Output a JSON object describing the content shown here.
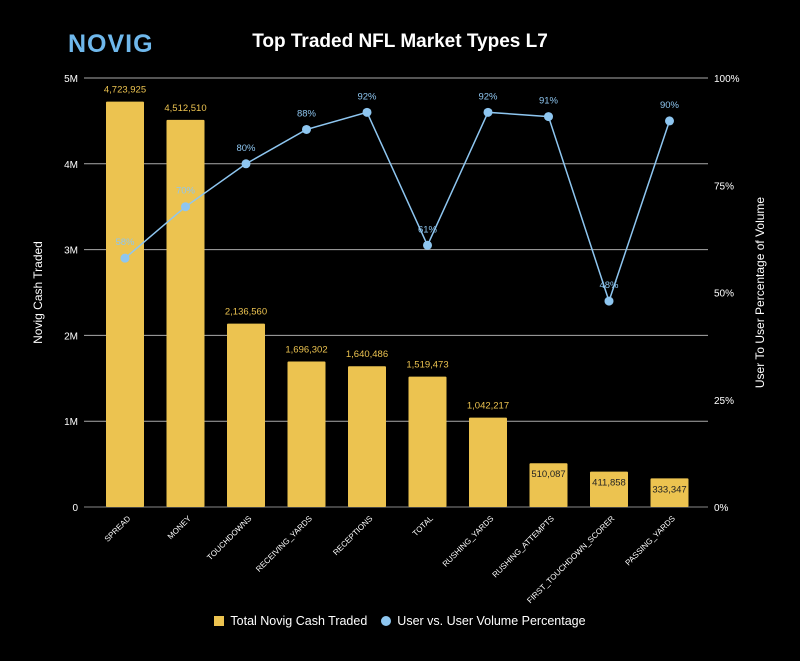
{
  "logo": "NOVIG",
  "chart_data": {
    "type": "bar+line",
    "title": "Top Traded NFL Market Types L7",
    "categories": [
      "SPREAD",
      "MONEY",
      "TOUCHDOWNS",
      "RECEIVING_YARDS",
      "RECEPTIONS",
      "TOTAL",
      "RUSHING_YARDS",
      "RUSHING_ATTEMPTS",
      "FIRST_TOUCHDOWN_SCORER",
      "PASSING_YARDS"
    ],
    "series": [
      {
        "name": "Total Novig Cash Traded",
        "type": "bar",
        "axis": "left",
        "color": "#ecc350",
        "values": [
          4723925,
          4512510,
          2136560,
          1696302,
          1640486,
          1519473,
          1042217,
          510087,
          411858,
          333347
        ],
        "labels": [
          "4,723,925",
          "4,512,510",
          "2,136,560",
          "1,696,302",
          "1,640,486",
          "1,519,473",
          "1,042,217",
          "510,087",
          "411,858",
          "333,347"
        ]
      },
      {
        "name": "User vs. User Volume Percentage",
        "type": "line",
        "axis": "right",
        "color": "#8ec6f0",
        "values": [
          58,
          70,
          80,
          88,
          92,
          61,
          92,
          91,
          48,
          90
        ],
        "labels": [
          "58%",
          "70%",
          "80%",
          "88%",
          "92%",
          "61%",
          "92%",
          "91%",
          "48%",
          "90%"
        ]
      }
    ],
    "ylabel": "Novig Cash Traded",
    "y2label": "User To User Percentage of Volume",
    "ylim": [
      0,
      5000000
    ],
    "y2lim": [
      0,
      100
    ],
    "yticks": [
      "0",
      "1M",
      "2M",
      "3M",
      "4M",
      "5M"
    ],
    "y2ticks": [
      "0%",
      "25%",
      "50%",
      "75%",
      "100%"
    ],
    "grid": true,
    "legend": "bottom"
  }
}
